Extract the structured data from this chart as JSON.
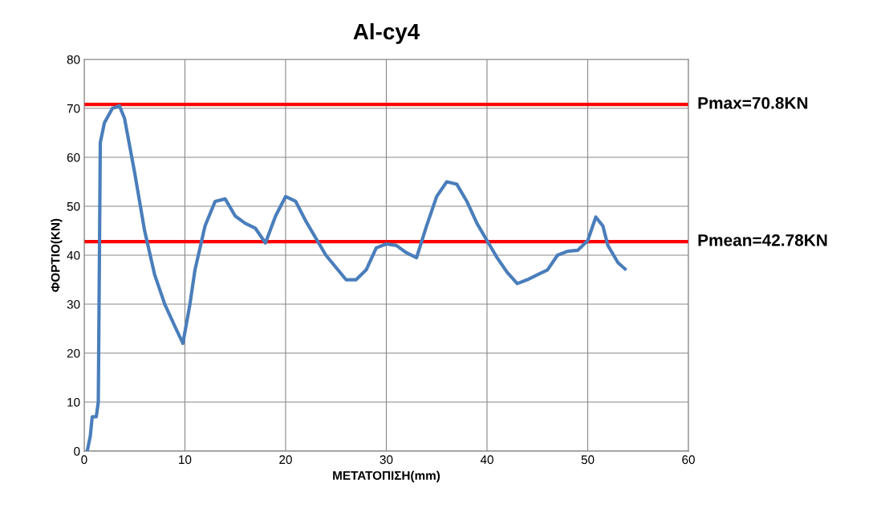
{
  "chart_data": {
    "type": "line",
    "title": "Al-cy4",
    "xlabel": "ΜΕΤΑΤΟΠΙΣΗ(mm)",
    "ylabel": "ΦΟΡΤΙΟ(KN)",
    "xlim": [
      0,
      60
    ],
    "ylim": [
      0,
      80
    ],
    "xticks": [
      0,
      10,
      20,
      30,
      40,
      50,
      60
    ],
    "yticks": [
      0,
      10,
      20,
      30,
      40,
      50,
      60,
      70,
      80
    ],
    "grid": true,
    "legend": false,
    "series": [
      {
        "color": "#4a7ebb",
        "x": [
          0.3,
          0.6,
          0.8,
          1.2,
          1.4,
          1.6,
          2,
          2.8,
          3.5,
          4,
          5,
          6,
          7,
          8,
          9,
          9.8,
          10.5,
          11,
          12,
          13,
          14,
          15,
          16,
          17,
          18,
          19,
          20,
          21,
          22,
          23,
          24,
          25,
          26,
          27,
          28,
          29,
          30,
          31,
          32,
          33,
          34,
          35,
          36,
          37,
          38,
          39,
          40,
          41,
          42,
          43,
          44,
          45,
          46,
          47,
          48,
          49,
          50,
          50.8,
          51.5,
          52,
          53,
          53.7
        ],
        "values": [
          0,
          3,
          7,
          7,
          10,
          63,
          67,
          70,
          70.5,
          68,
          57,
          45,
          36,
          30,
          25.5,
          22,
          30,
          37,
          46,
          51,
          51.5,
          48,
          46.5,
          45.5,
          42.5,
          48,
          52,
          51,
          47,
          43.5,
          40,
          37.5,
          35,
          35,
          37,
          41.5,
          42.3,
          42,
          40.5,
          39.5,
          46,
          52,
          55,
          54.5,
          51,
          46.5,
          43,
          39.5,
          36.5,
          34.2,
          35,
          36,
          37,
          40,
          40.8,
          41,
          43,
          47.8,
          46,
          42,
          38.5,
          37.2
        ]
      }
    ],
    "ref_lines": [
      {
        "axis": "y",
        "value": 70.8,
        "label": "Pmax=70.8KN",
        "color": "#ff0000"
      },
      {
        "axis": "y",
        "value": 42.78,
        "label": "Pmean=42.78KN",
        "color": "#ff0000"
      }
    ]
  }
}
